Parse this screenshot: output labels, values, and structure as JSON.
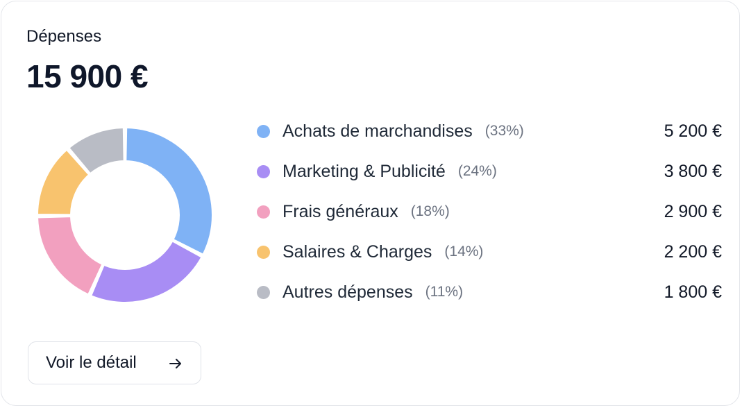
{
  "card": {
    "title": "Dépenses",
    "total": "15 900 €",
    "button_label": "Voir le détail",
    "button_icon": "arrow-right-icon"
  },
  "chart_data": {
    "type": "pie",
    "title": "Dépenses",
    "categories": [
      "Achats de marchandises",
      "Marketing & Publicité",
      "Frais généraux",
      "Salaires & Charges",
      "Autres dépenses"
    ],
    "values": [
      5200,
      3800,
      2900,
      2200,
      1800
    ],
    "percentages": [
      33,
      24,
      18,
      14,
      11
    ],
    "colors": [
      "#7fb2f5",
      "#a88df4",
      "#f2a0bf",
      "#f8c36e",
      "#b9bcc5"
    ]
  },
  "legend": [
    {
      "label": "Achats de marchandises",
      "pct": "(33%)",
      "amount": "5 200 €",
      "color": "#7fb2f5"
    },
    {
      "label": "Marketing & Publicité",
      "pct": "(24%)",
      "amount": "3 800 €",
      "color": "#a88df4"
    },
    {
      "label": "Frais généraux",
      "pct": "(18%)",
      "amount": "2 900 €",
      "color": "#f2a0bf"
    },
    {
      "label": "Salaires & Charges",
      "pct": "(14%)",
      "amount": "2 200 €",
      "color": "#f8c36e"
    },
    {
      "label": "Autres dépenses",
      "pct": "(11%)",
      "amount": "1 800 €",
      "color": "#b9bcc5"
    }
  ]
}
